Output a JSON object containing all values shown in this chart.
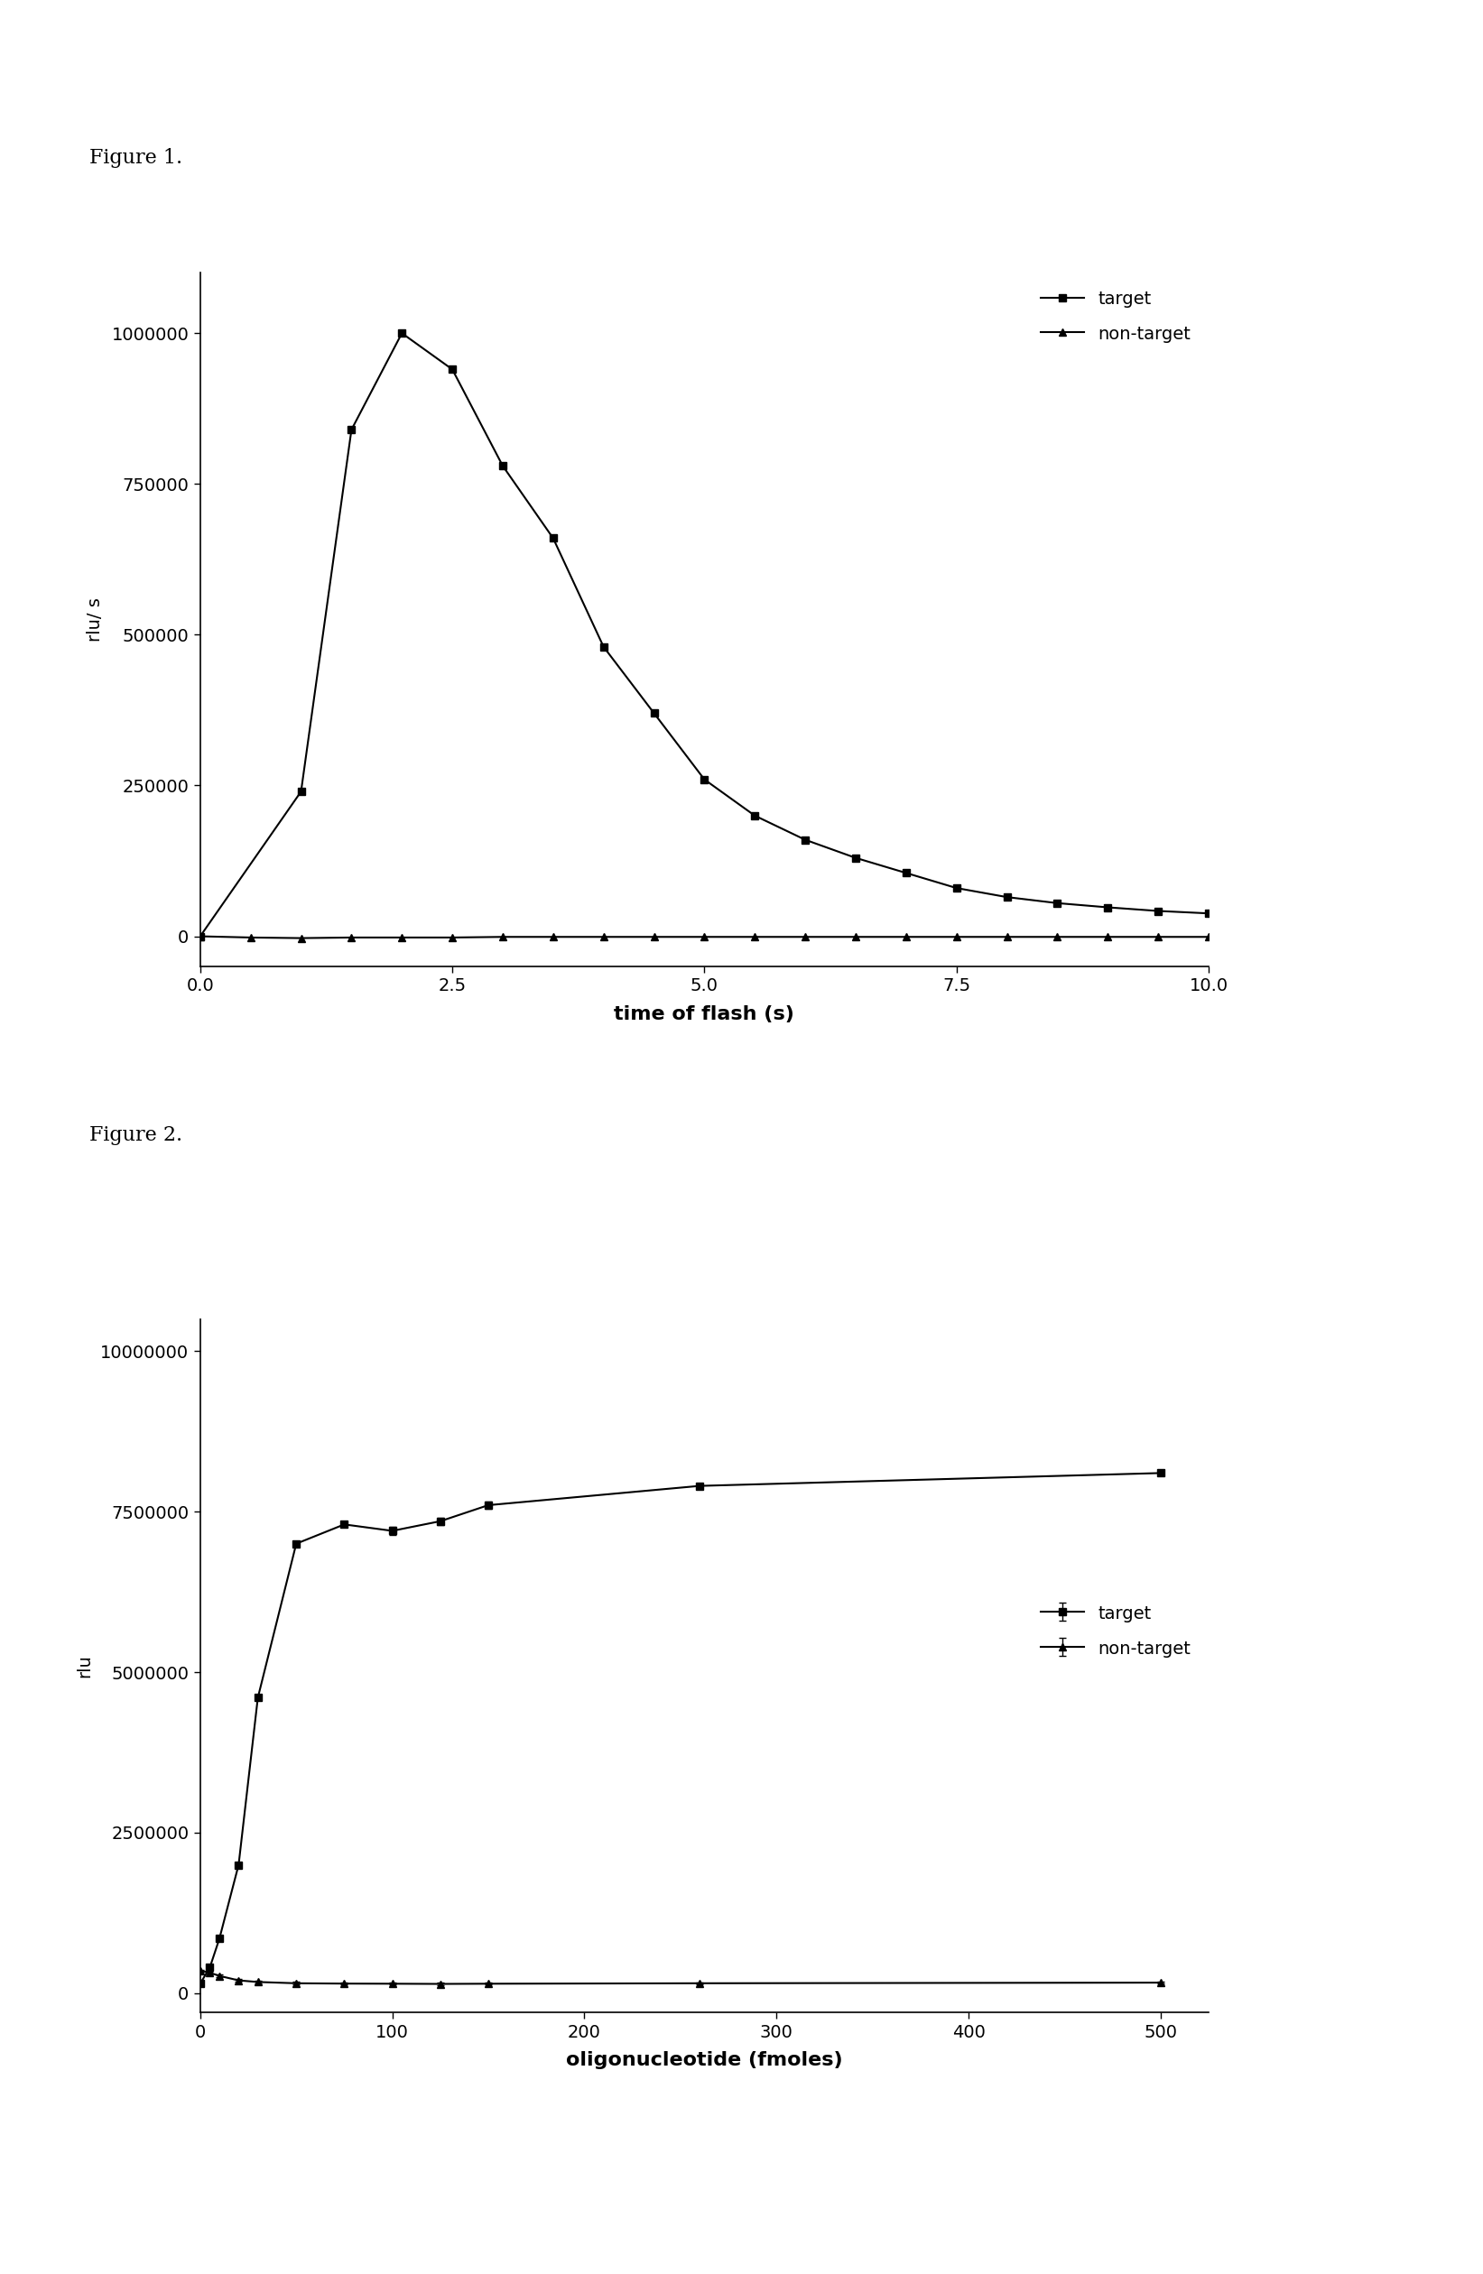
{
  "fig1_title": "Figure 1.",
  "fig2_title": "Figure 2.",
  "fig1_target_x": [
    0.0,
    1.0,
    1.5,
    2.0,
    2.5,
    3.0,
    3.5,
    4.0,
    4.5,
    5.0,
    5.5,
    6.0,
    6.5,
    7.0,
    7.5,
    8.0,
    8.5,
    9.0,
    9.5,
    10.0
  ],
  "fig1_target_y": [
    0,
    240000,
    840000,
    1000000,
    940000,
    780000,
    660000,
    480000,
    370000,
    260000,
    200000,
    160000,
    130000,
    105000,
    80000,
    65000,
    55000,
    48000,
    42000,
    38000
  ],
  "fig1_nontarget_x": [
    0.0,
    0.5,
    1.0,
    1.5,
    2.0,
    2.5,
    3.0,
    3.5,
    4.0,
    4.5,
    5.0,
    5.5,
    6.0,
    6.5,
    7.0,
    7.5,
    8.0,
    8.5,
    9.0,
    9.5,
    10.0
  ],
  "fig1_nontarget_y": [
    0,
    -2000,
    -3000,
    -2000,
    -2000,
    -2000,
    -1000,
    -1000,
    -1000,
    -1000,
    -1000,
    -1000,
    -1000,
    -1000,
    -1000,
    -1000,
    -1000,
    -1000,
    -1000,
    -1000,
    -1000
  ],
  "fig1_xlabel": "time of flash (s)",
  "fig1_ylabel": "rlu/ s",
  "fig1_xlim": [
    0.0,
    10.0
  ],
  "fig1_ylim": [
    -50000,
    1100000
  ],
  "fig1_yticks": [
    0,
    250000,
    500000,
    750000,
    1000000
  ],
  "fig1_xticks": [
    0.0,
    2.5,
    5.0,
    7.5,
    10.0
  ],
  "fig1_xticklabels": [
    "0.0",
    "2.5",
    "5.0",
    "7.5",
    "10.0"
  ],
  "fig2_target_x": [
    0,
    5,
    10,
    20,
    30,
    50,
    75,
    100,
    125,
    150,
    260,
    500
  ],
  "fig2_target_y": [
    150000,
    400000,
    850000,
    2000000,
    4600000,
    7000000,
    7300000,
    7200000,
    7350000,
    7600000,
    7900000,
    8100000
  ],
  "fig2_nontarget_x": [
    0,
    5,
    10,
    20,
    30,
    50,
    75,
    100,
    125,
    150,
    260,
    500
  ],
  "fig2_nontarget_y": [
    350000,
    320000,
    270000,
    200000,
    175000,
    155000,
    150000,
    148000,
    145000,
    148000,
    155000,
    165000
  ],
  "fig2_xlabel": "oligonucleotide (fmoles)",
  "fig2_ylabel": "rlu",
  "fig2_xlim": [
    0,
    525
  ],
  "fig2_ylim": [
    -300000,
    10500000
  ],
  "fig2_yticks": [
    0,
    2500000,
    5000000,
    7500000,
    10000000
  ],
  "fig2_xticks": [
    0,
    100,
    200,
    300,
    400,
    500
  ],
  "fig2_xticklabels": [
    "0",
    "100",
    "200",
    "300",
    "400",
    "500"
  ],
  "line_color": "#000000",
  "bg_color": "#ffffff",
  "marker_target": "s",
  "marker_nontarget": "^",
  "marker_size": 6,
  "line_width": 1.5,
  "legend_target": "target",
  "legend_nontarget": "non-target",
  "fig2_target_errorbars": [
    20000,
    20000,
    20000,
    20000,
    20000,
    20000,
    20000,
    60000,
    60000,
    50000,
    40000,
    40000
  ],
  "fig2_nontarget_errorbars": [
    20000,
    20000,
    20000,
    20000,
    20000,
    20000,
    15000,
    15000,
    15000,
    15000,
    15000,
    15000
  ]
}
